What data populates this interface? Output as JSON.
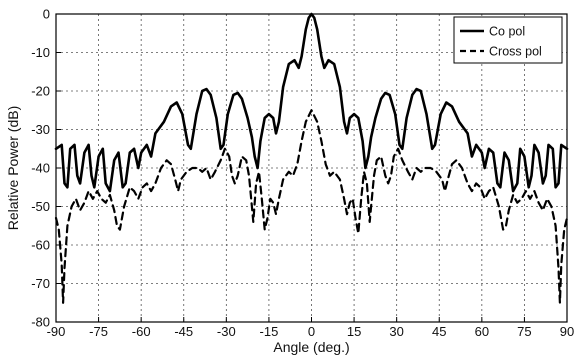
{
  "chart_data": {
    "type": "line",
    "xlabel": "Angle (deg.)",
    "ylabel": "Relative Power (dB)",
    "xlim": [
      -90,
      90
    ],
    "ylim": [
      -80,
      0
    ],
    "x_ticks": [
      -90,
      -75,
      -60,
      -45,
      -30,
      -15,
      0,
      15,
      30,
      45,
      60,
      75,
      90
    ],
    "y_ticks": [
      0,
      -10,
      -20,
      -30,
      -40,
      -50,
      -60,
      -70,
      -80
    ],
    "grid": true,
    "legend_position": "top-right",
    "series": [
      {
        "name": "Co pol",
        "style": "solid",
        "color": "#000000",
        "points": [
          [
            -90,
            -35
          ],
          [
            -88,
            -34
          ],
          [
            -87,
            -44
          ],
          [
            -86,
            -45
          ],
          [
            -85,
            -35
          ],
          [
            -83.5,
            -34
          ],
          [
            -82.5,
            -42
          ],
          [
            -81.5,
            -44
          ],
          [
            -80,
            -36
          ],
          [
            -78.5,
            -34
          ],
          [
            -77.5,
            -42
          ],
          [
            -76.5,
            -45
          ],
          [
            -75,
            -37
          ],
          [
            -73.5,
            -35
          ],
          [
            -72.5,
            -44
          ],
          [
            -71,
            -46
          ],
          [
            -69.5,
            -38
          ],
          [
            -68,
            -36
          ],
          [
            -66.5,
            -45
          ],
          [
            -65.5,
            -44
          ],
          [
            -64,
            -36
          ],
          [
            -62.5,
            -35
          ],
          [
            -61,
            -40
          ],
          [
            -60,
            -36
          ],
          [
            -58,
            -34
          ],
          [
            -56.5,
            -37
          ],
          [
            -55,
            -31
          ],
          [
            -52,
            -28
          ],
          [
            -49.5,
            -24
          ],
          [
            -47.5,
            -23
          ],
          [
            -45.5,
            -26
          ],
          [
            -43.5,
            -34
          ],
          [
            -42.5,
            -35
          ],
          [
            -40.5,
            -26
          ],
          [
            -38.5,
            -20
          ],
          [
            -37,
            -19.5
          ],
          [
            -35.5,
            -21
          ],
          [
            -33.5,
            -27
          ],
          [
            -32,
            -35
          ],
          [
            -31,
            -34
          ],
          [
            -29.5,
            -26
          ],
          [
            -27.5,
            -21
          ],
          [
            -26,
            -20.5
          ],
          [
            -24.5,
            -22
          ],
          [
            -22.5,
            -27
          ],
          [
            -21,
            -32
          ],
          [
            -20,
            -37
          ],
          [
            -19,
            -40
          ],
          [
            -18,
            -33
          ],
          [
            -16.5,
            -27
          ],
          [
            -15,
            -26
          ],
          [
            -13.5,
            -27
          ],
          [
            -12.5,
            -31
          ],
          [
            -11.5,
            -28
          ],
          [
            -10,
            -19
          ],
          [
            -8,
            -13
          ],
          [
            -6,
            -12
          ],
          [
            -4.5,
            -14
          ],
          [
            -3.5,
            -11
          ],
          [
            -2,
            -4
          ],
          [
            -1,
            -1
          ],
          [
            0,
            0
          ],
          [
            1,
            -1
          ],
          [
            2,
            -4
          ],
          [
            3.5,
            -11
          ],
          [
            4.5,
            -14
          ],
          [
            6,
            -12
          ],
          [
            8,
            -13
          ],
          [
            10,
            -19
          ],
          [
            11.5,
            -28
          ],
          [
            12.5,
            -31
          ],
          [
            13.5,
            -27
          ],
          [
            15,
            -26
          ],
          [
            16.5,
            -27
          ],
          [
            18,
            -33
          ],
          [
            19,
            -40
          ],
          [
            20,
            -37
          ],
          [
            21,
            -32
          ],
          [
            22.5,
            -27
          ],
          [
            24.5,
            -22
          ],
          [
            26,
            -20.5
          ],
          [
            27.5,
            -21
          ],
          [
            29.5,
            -26
          ],
          [
            31,
            -34
          ],
          [
            32,
            -35
          ],
          [
            33.5,
            -27
          ],
          [
            35.5,
            -21
          ],
          [
            37,
            -19.5
          ],
          [
            38.5,
            -20
          ],
          [
            40.5,
            -26
          ],
          [
            42.5,
            -35
          ],
          [
            43.5,
            -34
          ],
          [
            45.5,
            -26
          ],
          [
            47.5,
            -23
          ],
          [
            49.5,
            -24
          ],
          [
            52,
            -28
          ],
          [
            55,
            -31
          ],
          [
            56.5,
            -37
          ],
          [
            58,
            -34
          ],
          [
            60,
            -36
          ],
          [
            61,
            -40
          ],
          [
            62.5,
            -35
          ],
          [
            64,
            -36
          ],
          [
            65.5,
            -44
          ],
          [
            66.5,
            -45
          ],
          [
            68,
            -36
          ],
          [
            69.5,
            -38
          ],
          [
            71,
            -46
          ],
          [
            72.5,
            -44
          ],
          [
            73.5,
            -35
          ],
          [
            75,
            -37
          ],
          [
            76.5,
            -45
          ],
          [
            77.5,
            -42
          ],
          [
            78.5,
            -34
          ],
          [
            80,
            -36
          ],
          [
            81.5,
            -44
          ],
          [
            82.5,
            -42
          ],
          [
            83.5,
            -34
          ],
          [
            85,
            -35
          ],
          [
            86,
            -45
          ],
          [
            87,
            -44
          ],
          [
            88,
            -34
          ],
          [
            90,
            -35
          ]
        ]
      },
      {
        "name": "Cross pol",
        "style": "dashed",
        "color": "#000000",
        "points": [
          [
            -90,
            -53
          ],
          [
            -89,
            -56
          ],
          [
            -88,
            -65
          ],
          [
            -87.5,
            -75
          ],
          [
            -87,
            -66
          ],
          [
            -86,
            -55
          ],
          [
            -84.5,
            -50
          ],
          [
            -83,
            -48
          ],
          [
            -81.5,
            -51
          ],
          [
            -80,
            -49
          ],
          [
            -78.5,
            -46
          ],
          [
            -77,
            -48
          ],
          [
            -75.5,
            -46
          ],
          [
            -74,
            -48
          ],
          [
            -72.5,
            -49
          ],
          [
            -71,
            -47
          ],
          [
            -69.5,
            -51
          ],
          [
            -68.5,
            -55
          ],
          [
            -67.5,
            -56
          ],
          [
            -66,
            -50
          ],
          [
            -64,
            -45
          ],
          [
            -62.5,
            -46
          ],
          [
            -61,
            -48
          ],
          [
            -59.5,
            -45
          ],
          [
            -58,
            -44
          ],
          [
            -56.5,
            -46
          ],
          [
            -55,
            -44
          ],
          [
            -53,
            -40
          ],
          [
            -51,
            -38
          ],
          [
            -49.5,
            -39
          ],
          [
            -48,
            -43
          ],
          [
            -47,
            -46
          ],
          [
            -46,
            -43
          ],
          [
            -44,
            -41
          ],
          [
            -42,
            -40
          ],
          [
            -40,
            -40
          ],
          [
            -38.5,
            -41
          ],
          [
            -37,
            -40
          ],
          [
            -35.5,
            -43
          ],
          [
            -34,
            -41
          ],
          [
            -32,
            -38
          ],
          [
            -30.5,
            -35
          ],
          [
            -29,
            -37
          ],
          [
            -28,
            -42
          ],
          [
            -27,
            -44
          ],
          [
            -26,
            -42
          ],
          [
            -24.5,
            -37
          ],
          [
            -23,
            -38
          ],
          [
            -22,
            -42
          ],
          [
            -21,
            -50
          ],
          [
            -20.5,
            -54
          ],
          [
            -19.5,
            -44
          ],
          [
            -18.5,
            -41
          ],
          [
            -17.5,
            -48
          ],
          [
            -16.5,
            -56
          ],
          [
            -15.5,
            -53
          ],
          [
            -14.5,
            -48
          ],
          [
            -13.5,
            -49
          ],
          [
            -12.5,
            -52
          ],
          [
            -11.5,
            -48
          ],
          [
            -10,
            -43
          ],
          [
            -8,
            -41
          ],
          [
            -6.5,
            -42
          ],
          [
            -5,
            -39
          ],
          [
            -3.5,
            -33
          ],
          [
            -2,
            -28
          ],
          [
            0,
            -25
          ],
          [
            2,
            -28
          ],
          [
            3.5,
            -33
          ],
          [
            5,
            -39
          ],
          [
            6.5,
            -42
          ],
          [
            8,
            -41
          ],
          [
            10,
            -43
          ],
          [
            11.5,
            -48
          ],
          [
            12.5,
            -52
          ],
          [
            13.5,
            -49
          ],
          [
            14.5,
            -48
          ],
          [
            15.5,
            -53
          ],
          [
            16.5,
            -57
          ],
          [
            17.5,
            -48
          ],
          [
            18.5,
            -41
          ],
          [
            19.5,
            -44
          ],
          [
            20.5,
            -54
          ],
          [
            21,
            -50
          ],
          [
            22,
            -42
          ],
          [
            23,
            -38
          ],
          [
            24.5,
            -37
          ],
          [
            26,
            -42
          ],
          [
            27,
            -44
          ],
          [
            28,
            -42
          ],
          [
            29,
            -37
          ],
          [
            30.5,
            -35
          ],
          [
            32,
            -38
          ],
          [
            34,
            -41
          ],
          [
            35.5,
            -43
          ],
          [
            37,
            -40
          ],
          [
            38.5,
            -41
          ],
          [
            40,
            -40
          ],
          [
            42,
            -40
          ],
          [
            44,
            -41
          ],
          [
            46,
            -43
          ],
          [
            47,
            -46
          ],
          [
            48,
            -43
          ],
          [
            49.5,
            -39
          ],
          [
            51,
            -38
          ],
          [
            53,
            -40
          ],
          [
            55,
            -44
          ],
          [
            56.5,
            -46
          ],
          [
            58,
            -44
          ],
          [
            59.5,
            -45
          ],
          [
            61,
            -48
          ],
          [
            62.5,
            -46
          ],
          [
            64,
            -45
          ],
          [
            66,
            -50
          ],
          [
            67.5,
            -56
          ],
          [
            68.5,
            -55
          ],
          [
            69.5,
            -51
          ],
          [
            71,
            -47
          ],
          [
            72.5,
            -49
          ],
          [
            74,
            -48
          ],
          [
            75.5,
            -46
          ],
          [
            77,
            -48
          ],
          [
            78.5,
            -46
          ],
          [
            80,
            -49
          ],
          [
            81.5,
            -51
          ],
          [
            83,
            -48
          ],
          [
            84.5,
            -50
          ],
          [
            86,
            -55
          ],
          [
            87,
            -66
          ],
          [
            87.5,
            -75
          ],
          [
            88,
            -65
          ],
          [
            89,
            -56
          ],
          [
            90,
            -53
          ]
        ]
      }
    ]
  }
}
